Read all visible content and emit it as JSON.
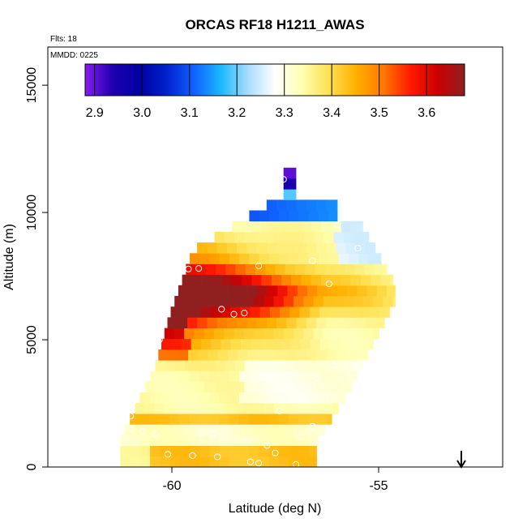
{
  "chart_data": {
    "type": "heatmap",
    "title": "ORCAS RF18 H1211_AWAS",
    "flights_label": "Flts: 18",
    "mmdd_label": "MMDD: 0225",
    "xlabel": "Latitude (deg N)",
    "ylabel": "Altitude (m)",
    "xlim": [
      -63,
      -52
    ],
    "ylim": [
      0,
      16500
    ],
    "x_ticks": [
      -60,
      -55
    ],
    "x_tick_labels": [
      "-60",
      "-55"
    ],
    "y_ticks": [
      0,
      5000,
      10000,
      15000
    ],
    "y_tick_labels": [
      "0",
      "5000",
      "10000",
      "15000"
    ],
    "colorbar": {
      "range": [
        2.88,
        3.68
      ],
      "ticks": [
        2.9,
        3.0,
        3.1,
        3.2,
        3.3,
        3.4,
        3.5,
        3.6
      ],
      "tick_labels": [
        "2.9",
        "3.0",
        "3.1",
        "3.2",
        "3.3",
        "3.4",
        "3.5",
        "3.6"
      ],
      "colors": [
        "#8a1cf0",
        "#2000b0",
        "#0000a0",
        "#0022cc",
        "#1060ff",
        "#18b8ff",
        "#a8dcff",
        "#ffffff",
        "#ffffb0",
        "#ffe050",
        "#ffb000",
        "#ff7800",
        "#ff1a00",
        "#cc0000",
        "#902020"
      ]
    },
    "arrow_latitude": -53
  }
}
